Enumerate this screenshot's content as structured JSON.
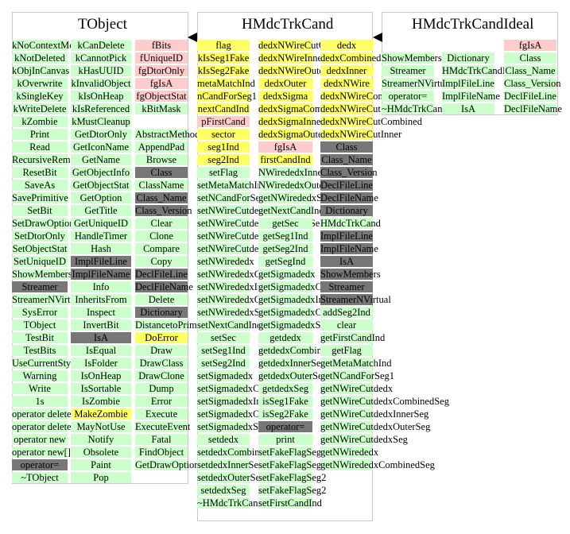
{
  "panels": {
    "tobject": {
      "title": "TObject",
      "col1": [
        {
          "t": "kNoContextMenu",
          "c": "g"
        },
        {
          "t": "kNotDeleted",
          "c": "g"
        },
        {
          "t": "kObjInCanvas",
          "c": "g"
        },
        {
          "t": "kOverwrite",
          "c": "g"
        },
        {
          "t": "kSingleKey",
          "c": "g"
        },
        {
          "t": "kWriteDelete",
          "c": "g"
        },
        {
          "t": "kZombie",
          "c": "g"
        },
        {
          "t": "Print",
          "c": "g"
        },
        {
          "t": "Read",
          "c": "g"
        },
        {
          "t": "RecursiveRemove",
          "c": "g"
        },
        {
          "t": "ResetBit",
          "c": "g"
        },
        {
          "t": "SaveAs",
          "c": "g"
        },
        {
          "t": "SavePrimitive",
          "c": "g"
        },
        {
          "t": "SetBit",
          "c": "g"
        },
        {
          "t": "SetDrawOption",
          "c": "g"
        },
        {
          "t": "SetDtorOnly",
          "c": "g"
        },
        {
          "t": "SetObjectStat",
          "c": "g"
        },
        {
          "t": "SetUniqueID",
          "c": "g"
        },
        {
          "t": "ShowMembers",
          "c": "g"
        },
        {
          "t": "Streamer",
          "c": "d"
        },
        {
          "t": "StreamerNVirtual",
          "c": "g"
        },
        {
          "t": "SysError",
          "c": "g"
        },
        {
          "t": "TObject",
          "c": "g"
        },
        {
          "t": "TestBit",
          "c": "g"
        },
        {
          "t": "TestBits",
          "c": "g"
        },
        {
          "t": "UseCurrentStyle",
          "c": "g"
        },
        {
          "t": "Warning",
          "c": "g"
        },
        {
          "t": "Write",
          "c": "g"
        },
        {
          "t": "1s",
          "c": "g"
        },
        {
          "t": "operator delete",
          "c": "g"
        },
        {
          "t": "operator delete[]",
          "c": "g"
        },
        {
          "t": "operator new",
          "c": "g"
        },
        {
          "t": "operator new[]",
          "c": "g"
        },
        {
          "t": "operator=",
          "c": "d"
        },
        {
          "t": "~TObject",
          "c": "g"
        }
      ],
      "col2": [
        {
          "t": "kCanDelete",
          "c": "g"
        },
        {
          "t": "kCannotPick",
          "c": "g"
        },
        {
          "t": "kHasUUID",
          "c": "g"
        },
        {
          "t": "kInvalidObject",
          "c": "g"
        },
        {
          "t": "kIsOnHeap",
          "c": "g"
        },
        {
          "t": "kIsReferenced",
          "c": "g"
        },
        {
          "t": "kMustCleanup",
          "c": "g"
        },
        {
          "t": "GetDtorOnly",
          "c": "g"
        },
        {
          "t": "GetIconName",
          "c": "g"
        },
        {
          "t": "GetName",
          "c": "g"
        },
        {
          "t": "GetObjectInfo",
          "c": "g"
        },
        {
          "t": "GetObjectStat",
          "c": "g"
        },
        {
          "t": "GetOption",
          "c": "g"
        },
        {
          "t": "GetTitle",
          "c": "g"
        },
        {
          "t": "GetUniqueID",
          "c": "g"
        },
        {
          "t": "HandleTimer",
          "c": "g"
        },
        {
          "t": "Hash",
          "c": "g"
        },
        {
          "t": "ImplFileLine",
          "c": "d"
        },
        {
          "t": "ImplFileName",
          "c": "d"
        },
        {
          "t": "Info",
          "c": "g"
        },
        {
          "t": "InheritsFrom",
          "c": "g"
        },
        {
          "t": "Inspect",
          "c": "g"
        },
        {
          "t": "InvertBit",
          "c": "g"
        },
        {
          "t": "IsA",
          "c": "d"
        },
        {
          "t": "IsEqual",
          "c": "g"
        },
        {
          "t": "IsFolder",
          "c": "g"
        },
        {
          "t": "IsOnHeap",
          "c": "g"
        },
        {
          "t": "IsSortable",
          "c": "g"
        },
        {
          "t": "IsZombie",
          "c": "g"
        },
        {
          "t": "MakeZombie",
          "c": "y"
        },
        {
          "t": "MayNotUse",
          "c": "g"
        },
        {
          "t": "Notify",
          "c": "g"
        },
        {
          "t": "Obsolete",
          "c": "g"
        },
        {
          "t": "Paint",
          "c": "g"
        },
        {
          "t": "Pop",
          "c": "g"
        }
      ],
      "col3a": [
        {
          "t": "fBits",
          "c": "p"
        },
        {
          "t": "fUniqueID",
          "c": "p"
        },
        {
          "t": "fgDtorOnly",
          "c": "p"
        },
        {
          "t": "fgIsA",
          "c": "p"
        },
        {
          "t": "fgObjectStat",
          "c": "p"
        },
        {
          "t": "kBitMask",
          "c": "g"
        }
      ],
      "col3b": [
        {
          "t": "AbstractMethod",
          "c": "g"
        },
        {
          "t": "AppendPad",
          "c": "g"
        },
        {
          "t": "Browse",
          "c": "g"
        },
        {
          "t": "Class",
          "c": "d"
        },
        {
          "t": "ClassName",
          "c": "g"
        },
        {
          "t": "Class_Name",
          "c": "d"
        },
        {
          "t": "Class_Version",
          "c": "d"
        },
        {
          "t": "Clear",
          "c": "g"
        },
        {
          "t": "Clone",
          "c": "g"
        },
        {
          "t": "Compare",
          "c": "g"
        },
        {
          "t": "Copy",
          "c": "g"
        },
        {
          "t": "DeclFileLine",
          "c": "d"
        },
        {
          "t": "DeclFileName",
          "c": "d"
        },
        {
          "t": "Delete",
          "c": "g"
        },
        {
          "t": "Dictionary",
          "c": "d"
        },
        {
          "t": "DistancetoPrimitive",
          "c": "g"
        },
        {
          "t": "DoError",
          "c": "y"
        },
        {
          "t": "Draw",
          "c": "g"
        },
        {
          "t": "DrawClass",
          "c": "g"
        },
        {
          "t": "DrawClone",
          "c": "g"
        },
        {
          "t": "Dump",
          "c": "g"
        },
        {
          "t": "Error",
          "c": "g"
        },
        {
          "t": "Execute",
          "c": "g"
        },
        {
          "t": "ExecuteEvent",
          "c": "g"
        },
        {
          "t": "Fatal",
          "c": "g"
        },
        {
          "t": "FindObject",
          "c": "g"
        },
        {
          "t": "GetDrawOption",
          "c": "g"
        }
      ]
    },
    "cand": {
      "title": "HMdcTrkCand",
      "col1": [
        {
          "t": "flag",
          "c": "y"
        },
        {
          "t": "kIsSeg1Fake",
          "c": "y"
        },
        {
          "t": "kIsSeg2Fake",
          "c": "y"
        },
        {
          "t": "metaMatchInd",
          "c": "y"
        },
        {
          "t": "nCandForSeg1",
          "c": "y"
        },
        {
          "t": "nextCandInd",
          "c": "y"
        },
        {
          "t": "pFirstCand",
          "c": "p"
        },
        {
          "t": "sector",
          "c": "y"
        },
        {
          "t": "seg1Ind",
          "c": "y"
        },
        {
          "t": "seg2Ind",
          "c": "y"
        },
        {
          "t": "setFlag",
          "c": "g"
        },
        {
          "t": "setMetaMatchInd",
          "c": "g"
        },
        {
          "t": "setNCandForSeg1",
          "c": "g"
        },
        {
          "t": "setNWireCutdedx",
          "c": "g"
        },
        {
          "t": "setNWireCutdedxCombinedSeg",
          "c": "g"
        },
        {
          "t": "setNWireCutdedxInnerSeg",
          "c": "g"
        },
        {
          "t": "setNWireCutdedxOuterSeg",
          "c": "g"
        },
        {
          "t": "setNWirededx",
          "c": "g"
        },
        {
          "t": "setNWirededxCombinedSeg",
          "c": "g"
        },
        {
          "t": "setNWirededxInnerSeg",
          "c": "g"
        },
        {
          "t": "setNWirededxOuterSeg",
          "c": "g"
        },
        {
          "t": "setNWirededxSeg",
          "c": "g"
        },
        {
          "t": "setNextCandInd",
          "c": "g"
        },
        {
          "t": "setSec",
          "c": "g"
        },
        {
          "t": "setSeg1Ind",
          "c": "g"
        },
        {
          "t": "setSeg2Ind",
          "c": "g"
        },
        {
          "t": "setSigmadedx",
          "c": "g"
        },
        {
          "t": "setSigmadedxCombinedSeg",
          "c": "g"
        },
        {
          "t": "setSigmadedxInnerSeg",
          "c": "g"
        },
        {
          "t": "setSigmadedxOuterSeg",
          "c": "g"
        },
        {
          "t": "setSigmadedxSeg",
          "c": "g"
        },
        {
          "t": "setdedx",
          "c": "g"
        },
        {
          "t": "setdedxCombinedSeg",
          "c": "g"
        },
        {
          "t": "setdedxInnerSeg",
          "c": "g"
        },
        {
          "t": "setdedxOuterSeg",
          "c": "g"
        },
        {
          "t": "setdedxSeg",
          "c": "g"
        },
        {
          "t": "~HMdcTrkCand",
          "c": "g"
        }
      ],
      "col2": [
        {
          "t": "dedxNWireCutOuter",
          "c": "y"
        },
        {
          "t": "dedxNWireInner",
          "c": "y"
        },
        {
          "t": "dedxNWireOuter",
          "c": "y"
        },
        {
          "t": "dedxOuter",
          "c": "y"
        },
        {
          "t": "dedxSigma",
          "c": "y"
        },
        {
          "t": "dedxSigmaCombined",
          "c": "y"
        },
        {
          "t": "dedxSigmaInner",
          "c": "y"
        },
        {
          "t": "dedxSigmaOuter",
          "c": "y"
        },
        {
          "t": "fgIsA",
          "c": "p"
        },
        {
          "t": "firstCandInd",
          "c": "y"
        },
        {
          "t": "NWirededxInnerSeg",
          "c": "g"
        },
        {
          "t": "NWirededxOuterSeg",
          "c": "g"
        },
        {
          "t": "getNWirededxSeg",
          "c": "g"
        },
        {
          "t": "getNextCandInd",
          "c": "g"
        },
        {
          "t": "getSec",
          "c": "g"
        },
        {
          "t": "getSeg1Ind",
          "c": "g"
        },
        {
          "t": "getSeg2Ind",
          "c": "g"
        },
        {
          "t": "getSegInd",
          "c": "g"
        },
        {
          "t": "getSigmadedx",
          "c": "g"
        },
        {
          "t": "getSigmadedxCombinedSeg",
          "c": "g"
        },
        {
          "t": "getSigmadedxInnerSeg",
          "c": "g"
        },
        {
          "t": "getSigmadedxOuterSeg",
          "c": "g"
        },
        {
          "t": "getSigmadedxSeg",
          "c": "g"
        },
        {
          "t": "getdedx",
          "c": "g"
        },
        {
          "t": "getdedxCombinedSeg",
          "c": "g"
        },
        {
          "t": "getdedxInnerSeg",
          "c": "g"
        },
        {
          "t": "getdedxOuterSeg",
          "c": "g"
        },
        {
          "t": "getdedxSeg",
          "c": "g"
        },
        {
          "t": "isSeg1Fake",
          "c": "g"
        },
        {
          "t": "isSeg2Fake",
          "c": "g"
        },
        {
          "t": "operator=",
          "c": "d"
        },
        {
          "t": "print",
          "c": "g"
        },
        {
          "t": "setFakeFlagSeg1",
          "c": "g"
        },
        {
          "t": "setFakeFlagSeg2",
          "c": "g"
        },
        {
          "t": "setFakeFlagSeg2",
          "c": "g"
        },
        {
          "t": "setFakeFlagSeg2",
          "c": "g"
        },
        {
          "t": "setFirstCandInd",
          "c": "g"
        }
      ],
      "col3": [
        {
          "t": "dedx",
          "c": "y"
        },
        {
          "t": "dedxCombined",
          "c": "y"
        },
        {
          "t": "dedxInner",
          "c": "y"
        },
        {
          "t": "dedxNWire",
          "c": "y"
        },
        {
          "t": "dedxNWireCombined",
          "c": "y"
        },
        {
          "t": "dedxNWireCut",
          "c": "y"
        },
        {
          "t": "dedxNWireCutCombined",
          "c": "y"
        },
        {
          "t": "dedxNWireCutInner",
          "c": "y"
        },
        {
          "t": "Class",
          "c": "d"
        },
        {
          "t": "Class_Name",
          "c": "d"
        },
        {
          "t": "Class_Version",
          "c": "d"
        },
        {
          "t": "DeclFileLine",
          "c": "d"
        },
        {
          "t": "DeclFileName",
          "c": "d"
        },
        {
          "t": "Dictionary",
          "c": "d"
        },
        {
          "t": "HMdcTrkCand",
          "c": "g"
        },
        {
          "t": "ImplFileLine",
          "c": "d"
        },
        {
          "t": "ImplFileName",
          "c": "d"
        },
        {
          "t": "IsA",
          "c": "d"
        },
        {
          "t": "ShowMembers",
          "c": "d"
        },
        {
          "t": "Streamer",
          "c": "d"
        },
        {
          "t": "StreamerNVirtual",
          "c": "d"
        },
        {
          "t": "addSeg2Ind",
          "c": "g"
        },
        {
          "t": "clear",
          "c": "g"
        },
        {
          "t": "getFirstCandInd",
          "c": "g"
        },
        {
          "t": "getFlag",
          "c": "g"
        },
        {
          "t": "getMetaMatchInd",
          "c": "g"
        },
        {
          "t": "getNCandForSeg1",
          "c": "g"
        },
        {
          "t": "getNWireCutdedx",
          "c": "g"
        },
        {
          "t": "getNWireCutdedxCombinedSeg",
          "c": "g"
        },
        {
          "t": "getNWireCutdedxInnerSeg",
          "c": "g"
        },
        {
          "t": "getNWireCutdedxOuterSeg",
          "c": "g"
        },
        {
          "t": "getNWireCutdedxSeg",
          "c": "g"
        },
        {
          "t": "getNWirededx",
          "c": "g"
        },
        {
          "t": "getNWirededxCombinedSeg",
          "c": "g"
        }
      ]
    },
    "ideal": {
      "title": "HMdcTrkCandIdeal",
      "col1": [
        {
          "t": "ShowMembers",
          "c": "g"
        },
        {
          "t": "Streamer",
          "c": "g"
        },
        {
          "t": "StreamerNVirtual",
          "c": "g"
        },
        {
          "t": "operator=",
          "c": "g"
        },
        {
          "t": "~HMdcTrkCandIdeal",
          "c": "g"
        }
      ],
      "col2": [
        {
          "t": "Dictionary",
          "c": "g"
        },
        {
          "t": "HMdcTrkCandIdeal",
          "c": "g"
        },
        {
          "t": "ImplFileLine",
          "c": "g"
        },
        {
          "t": "ImplFileName",
          "c": "g"
        },
        {
          "t": "IsA",
          "c": "g"
        }
      ],
      "col3": [
        {
          "t": "fgIsA",
          "c": "p"
        },
        {
          "t": "Class",
          "c": "g"
        },
        {
          "t": "Class_Name",
          "c": "g"
        },
        {
          "t": "Class_Version",
          "c": "g"
        },
        {
          "t": "DeclFileLine",
          "c": "g"
        },
        {
          "t": "DeclFileName",
          "c": "g"
        }
      ]
    }
  },
  "colors": {
    "public": "#ccffcc",
    "private": "#ffcccc",
    "protected": "#ffff66",
    "overridden": "#777777"
  }
}
